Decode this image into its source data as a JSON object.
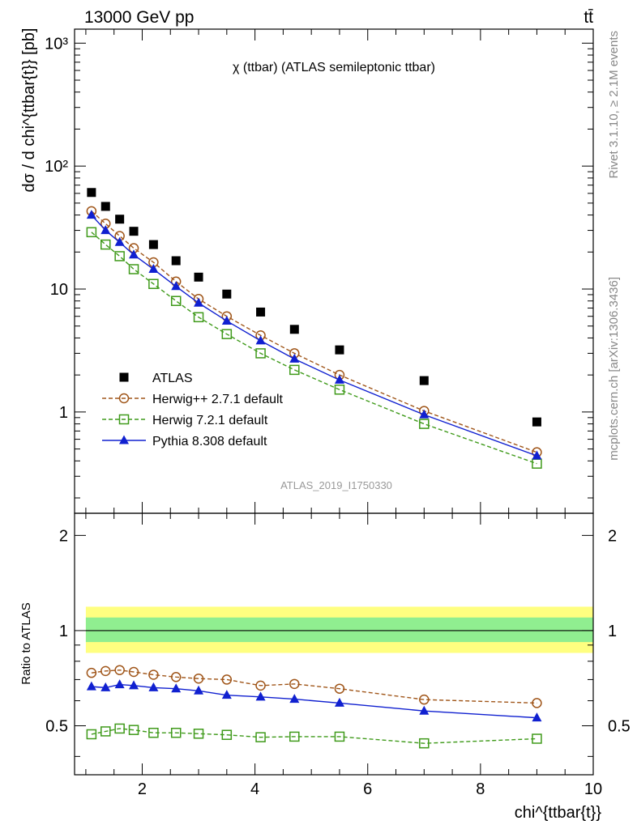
{
  "header": {
    "energy_label": "13000 GeV pp",
    "process_label": "tt̄",
    "rivet_label": "Rivet 3.1.10, ≥ 2.1M events",
    "source_label": "mcplots.cern.ch [arXiv:1306.3436]",
    "analysis_id": "ATLAS_2019_I1750330"
  },
  "chart_data": [
    {
      "type": "scatter",
      "title": "χ (ttbar) (ATLAS semileptonic ttbar)",
      "ylabel": "dσ / d chi^{ttbar{t}} [pb]",
      "xlabel": "chi^{ttbar{t}}",
      "xlim": [
        0.8,
        10
      ],
      "ylim": [
        0.15,
        1300
      ],
      "yscale": "log",
      "x_ticks": [
        2,
        4,
        6,
        8,
        10
      ],
      "y_ticks": [
        1,
        10,
        100,
        1000
      ],
      "y_tick_labels": [
        "1",
        "10",
        "10²",
        "10³"
      ],
      "legend_position": "middle-left",
      "x": [
        1.1,
        1.35,
        1.6,
        1.85,
        2.2,
        2.6,
        3.0,
        3.5,
        4.1,
        4.7,
        5.5,
        7.0,
        9.0
      ],
      "series": [
        {
          "name": "ATLAS",
          "color": "#000000",
          "marker": "filled-square",
          "line": "none",
          "values": [
            61,
            47,
            37,
            29.5,
            23,
            17,
            12.5,
            9.1,
            6.5,
            4.7,
            3.2,
            1.8,
            0.83
          ]
        },
        {
          "name": "Herwig++ 2.7.1 default",
          "color": "#a0561a",
          "marker": "open-circle",
          "line": "dashed",
          "values": [
            43,
            34,
            27,
            21.5,
            16.5,
            11.5,
            8.3,
            6.0,
            4.2,
            3.0,
            2.0,
            1.02,
            0.47
          ]
        },
        {
          "name": "Herwig 7.2.1 default",
          "color": "#3f9a1a",
          "marker": "open-square",
          "line": "dashed",
          "values": [
            29,
            23,
            18.5,
            14.5,
            11,
            8.0,
            5.9,
            4.3,
            3.0,
            2.2,
            1.52,
            0.8,
            0.38
          ]
        },
        {
          "name": "Pythia 8.308 default",
          "color": "#1020d0",
          "marker": "filled-triangle",
          "line": "solid",
          "values": [
            40,
            30,
            24,
            19,
            14.5,
            10.5,
            7.7,
            5.5,
            3.8,
            2.7,
            1.82,
            0.95,
            0.44
          ]
        }
      ]
    },
    {
      "type": "line",
      "ylabel": "Ratio to ATLAS",
      "xlim": [
        0.8,
        10
      ],
      "ylim": [
        0.35,
        2.35
      ],
      "yscale": "log",
      "x_ticks": [
        2,
        4,
        6,
        8,
        10
      ],
      "y_ticks": [
        0.5,
        1,
        2
      ],
      "y_tick_labels": [
        "0.5",
        "1",
        "2"
      ],
      "reference_line": 1,
      "bands": [
        {
          "color": "#ffff80",
          "low": 0.85,
          "high": 1.19
        },
        {
          "color": "#90ee90",
          "low": 0.92,
          "high": 1.1
        }
      ],
      "x": [
        1.1,
        1.35,
        1.6,
        1.85,
        2.2,
        2.6,
        3.0,
        3.5,
        4.1,
        4.7,
        5.5,
        7.0,
        9.0
      ],
      "series": [
        {
          "name": "Herwig++ 2.7.1 default",
          "color": "#a0561a",
          "marker": "open-circle",
          "line": "dashed",
          "values": [
            0.735,
            0.745,
            0.75,
            0.74,
            0.725,
            0.713,
            0.705,
            0.7,
            0.67,
            0.678,
            0.655,
            0.605,
            0.59
          ]
        },
        {
          "name": "Herwig 7.2.1 default",
          "color": "#3f9a1a",
          "marker": "open-square",
          "line": "dashed",
          "values": [
            0.47,
            0.48,
            0.49,
            0.485,
            0.475,
            0.475,
            0.472,
            0.468,
            0.46,
            0.462,
            0.462,
            0.44,
            0.455
          ]
        },
        {
          "name": "Pythia 8.308 default",
          "color": "#1020d0",
          "marker": "filled-triangle",
          "line": "solid",
          "values": [
            0.665,
            0.66,
            0.675,
            0.67,
            0.66,
            0.655,
            0.645,
            0.625,
            0.617,
            0.607,
            0.59,
            0.557,
            0.53
          ]
        }
      ]
    }
  ]
}
